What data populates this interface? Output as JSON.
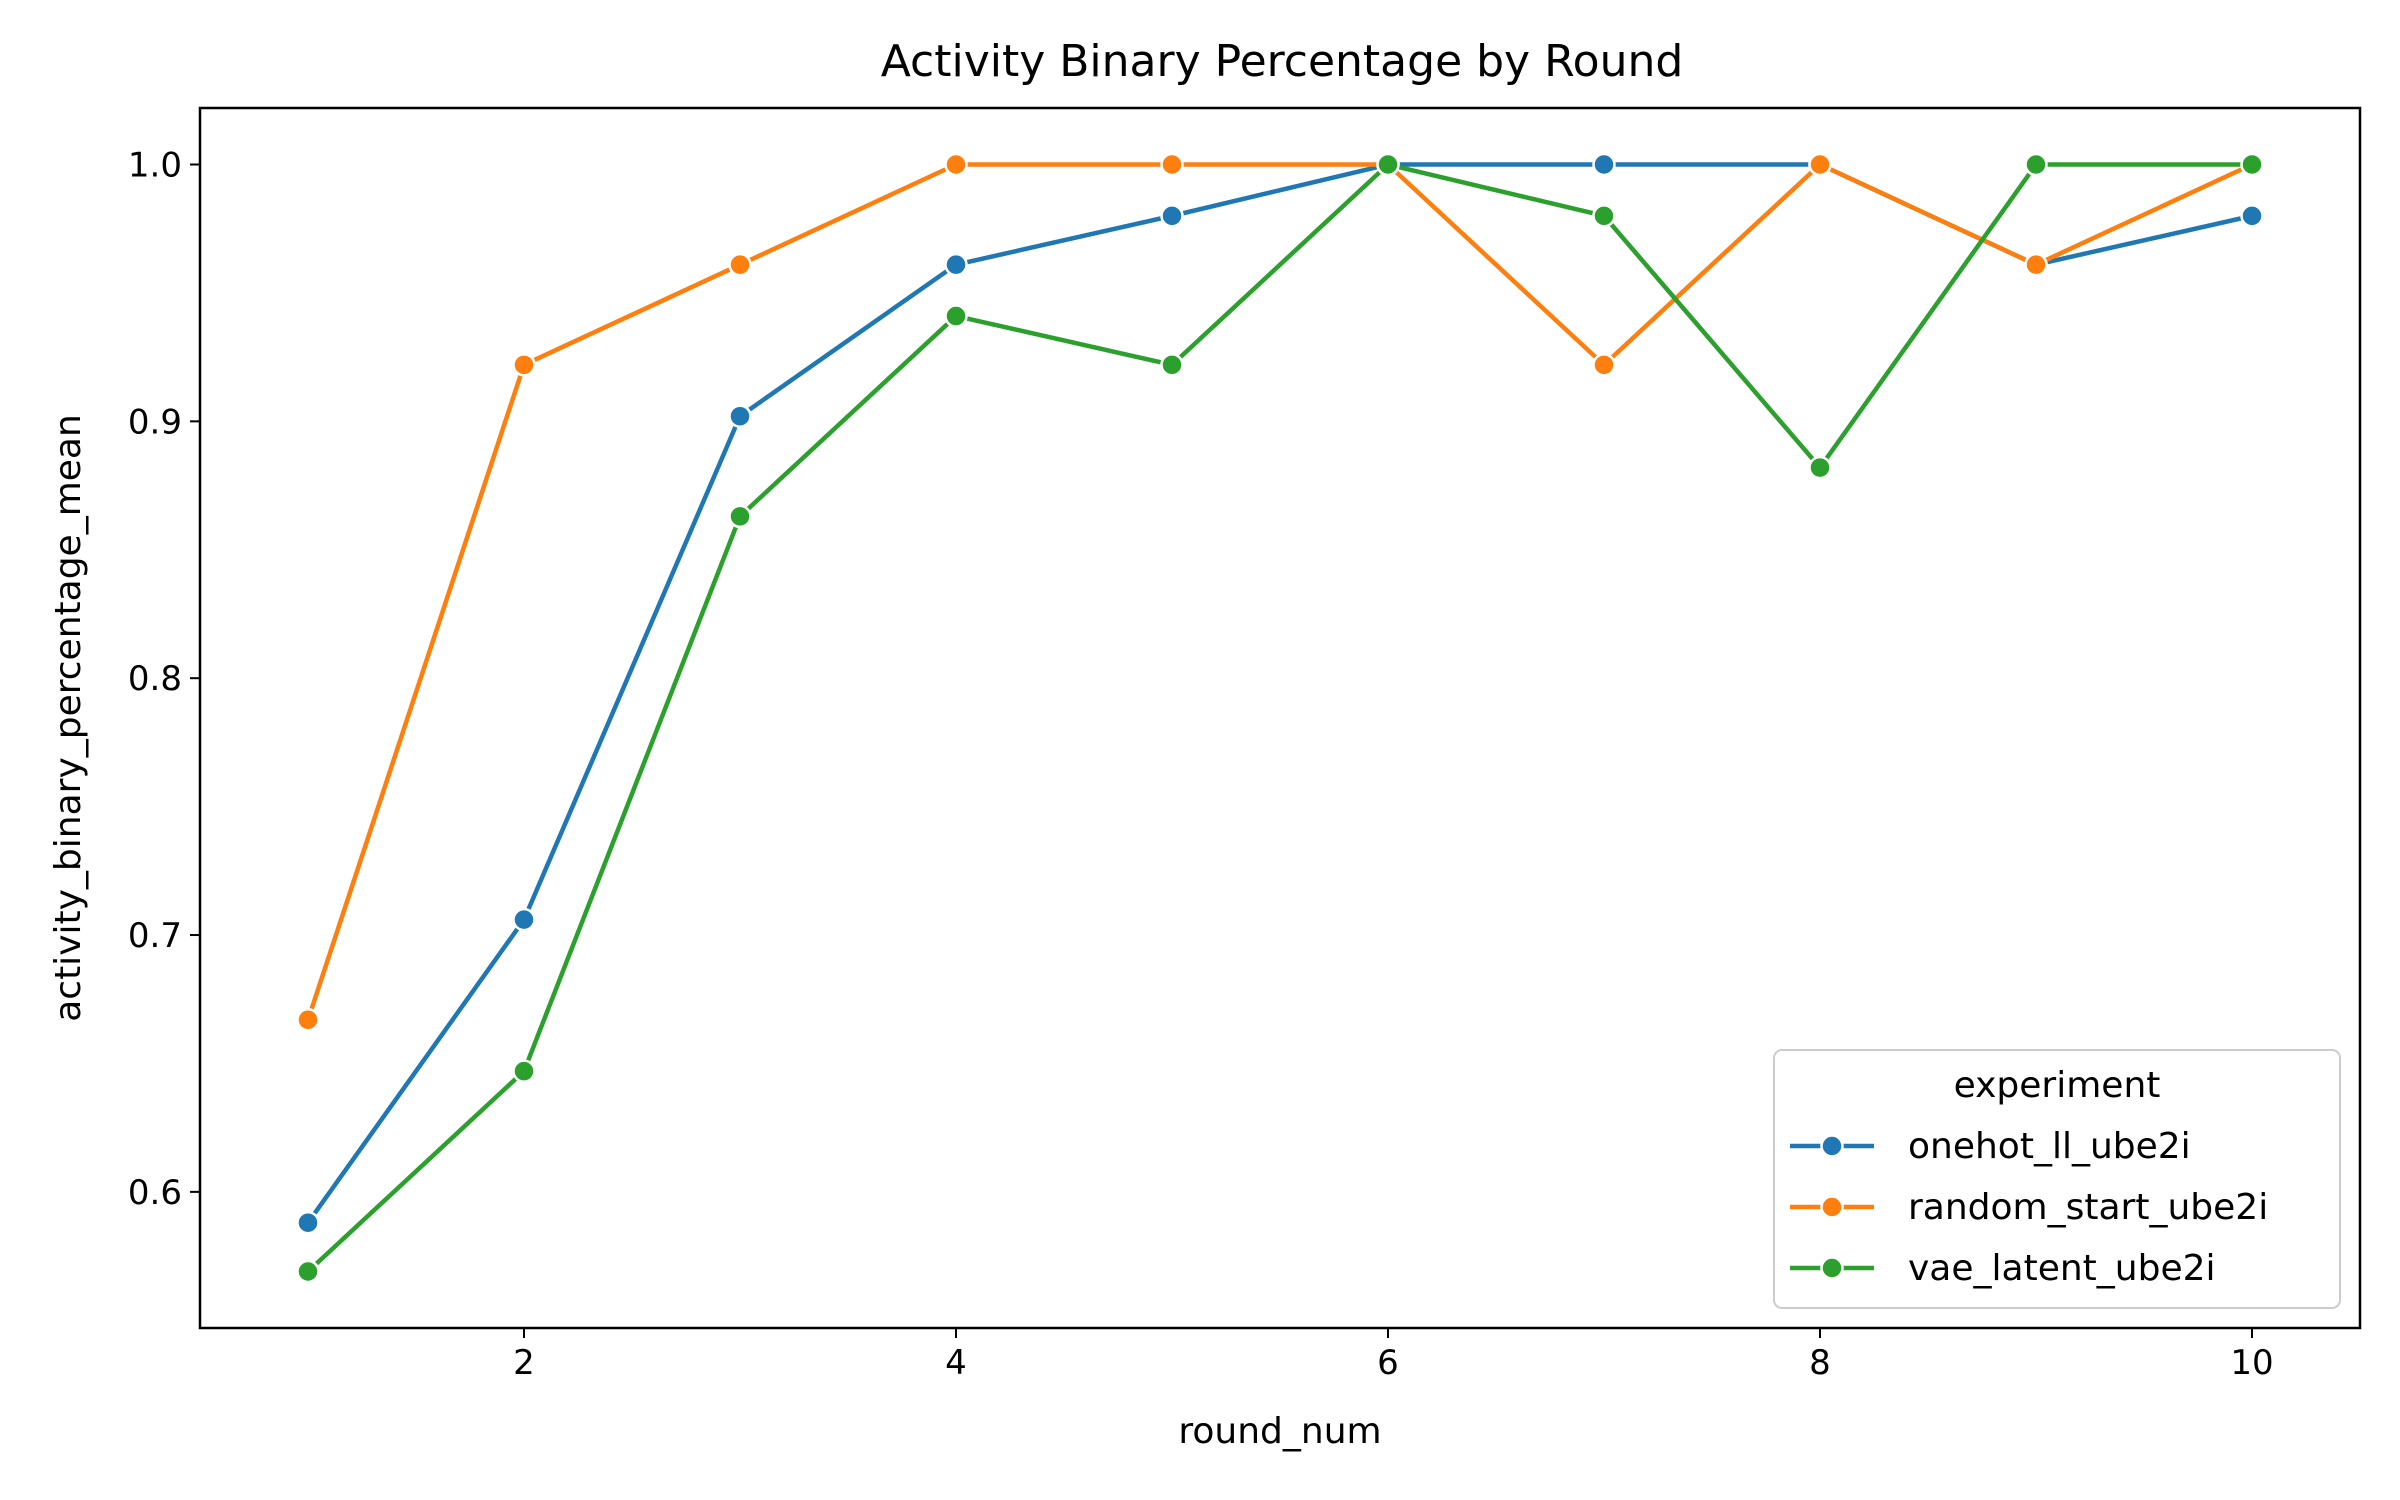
{
  "chart_data": {
    "type": "line",
    "title": "Activity Binary Percentage by Round",
    "xlabel": "round_num",
    "ylabel": "activity_binary_percentage_mean",
    "xlim": [
      0.5,
      10.5
    ],
    "ylim": [
      0.547,
      1.022
    ],
    "xticks": [
      2,
      4,
      6,
      8,
      10
    ],
    "yticks": [
      0.6,
      0.7,
      0.8,
      0.9,
      1.0
    ],
    "ytick_labels": [
      "0.6",
      "0.7",
      "0.8",
      "0.9",
      "1.0"
    ],
    "grid": false,
    "legend": {
      "title": "experiment",
      "placement": "lower-right"
    },
    "x": [
      1,
      2,
      3,
      4,
      5,
      6,
      7,
      8,
      9,
      10
    ],
    "series": [
      {
        "name": "onehot_ll_ube2i",
        "color": "#1f77b4",
        "values": [
          0.588,
          0.706,
          0.902,
          0.961,
          0.98,
          1.0,
          1.0,
          1.0,
          0.961,
          0.98
        ]
      },
      {
        "name": "random_start_ube2i",
        "color": "#ff7f0e",
        "values": [
          0.667,
          0.922,
          0.961,
          1.0,
          1.0,
          1.0,
          0.922,
          1.0,
          0.961,
          1.0
        ]
      },
      {
        "name": "vae_latent_ube2i",
        "color": "#2ca02c",
        "values": [
          0.569,
          0.647,
          0.863,
          0.941,
          0.922,
          1.0,
          0.98,
          0.882,
          1.0,
          1.0
        ]
      }
    ]
  }
}
